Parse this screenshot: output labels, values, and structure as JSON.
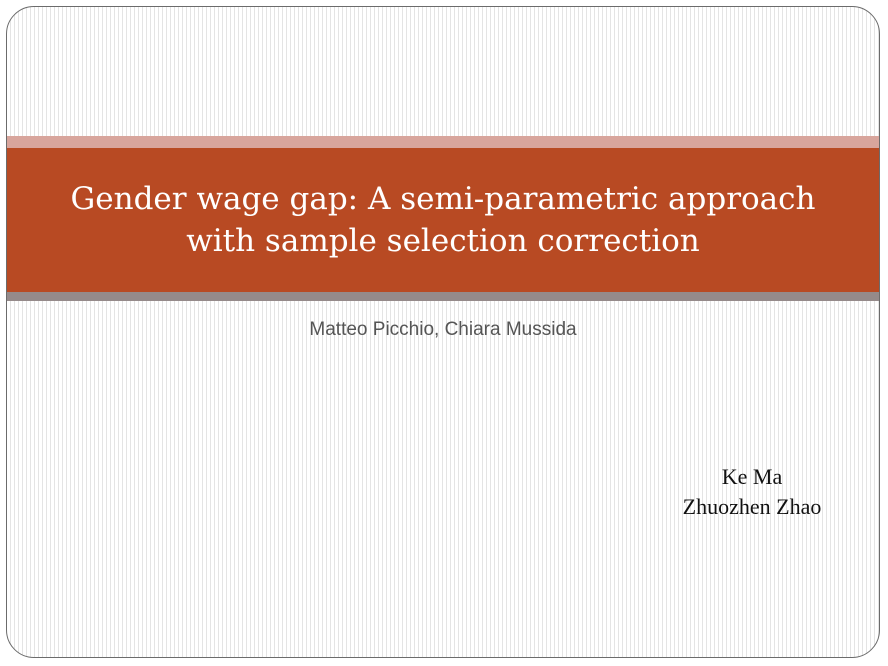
{
  "slide": {
    "title_lines": [
      "Gender wage gap: A semi-parametric approach",
      "with sample selection correction"
    ],
    "authors": "Matteo Picchio, Chiara Mussida",
    "presenters": [
      "Ke Ma",
      "Zhuozhen Zhao"
    ]
  },
  "colors": {
    "title_band": "#b84a23",
    "band_top_stripe": "#d8a59c",
    "band_bottom_stripe": "#958a8a",
    "title_text": "#ffffff"
  }
}
